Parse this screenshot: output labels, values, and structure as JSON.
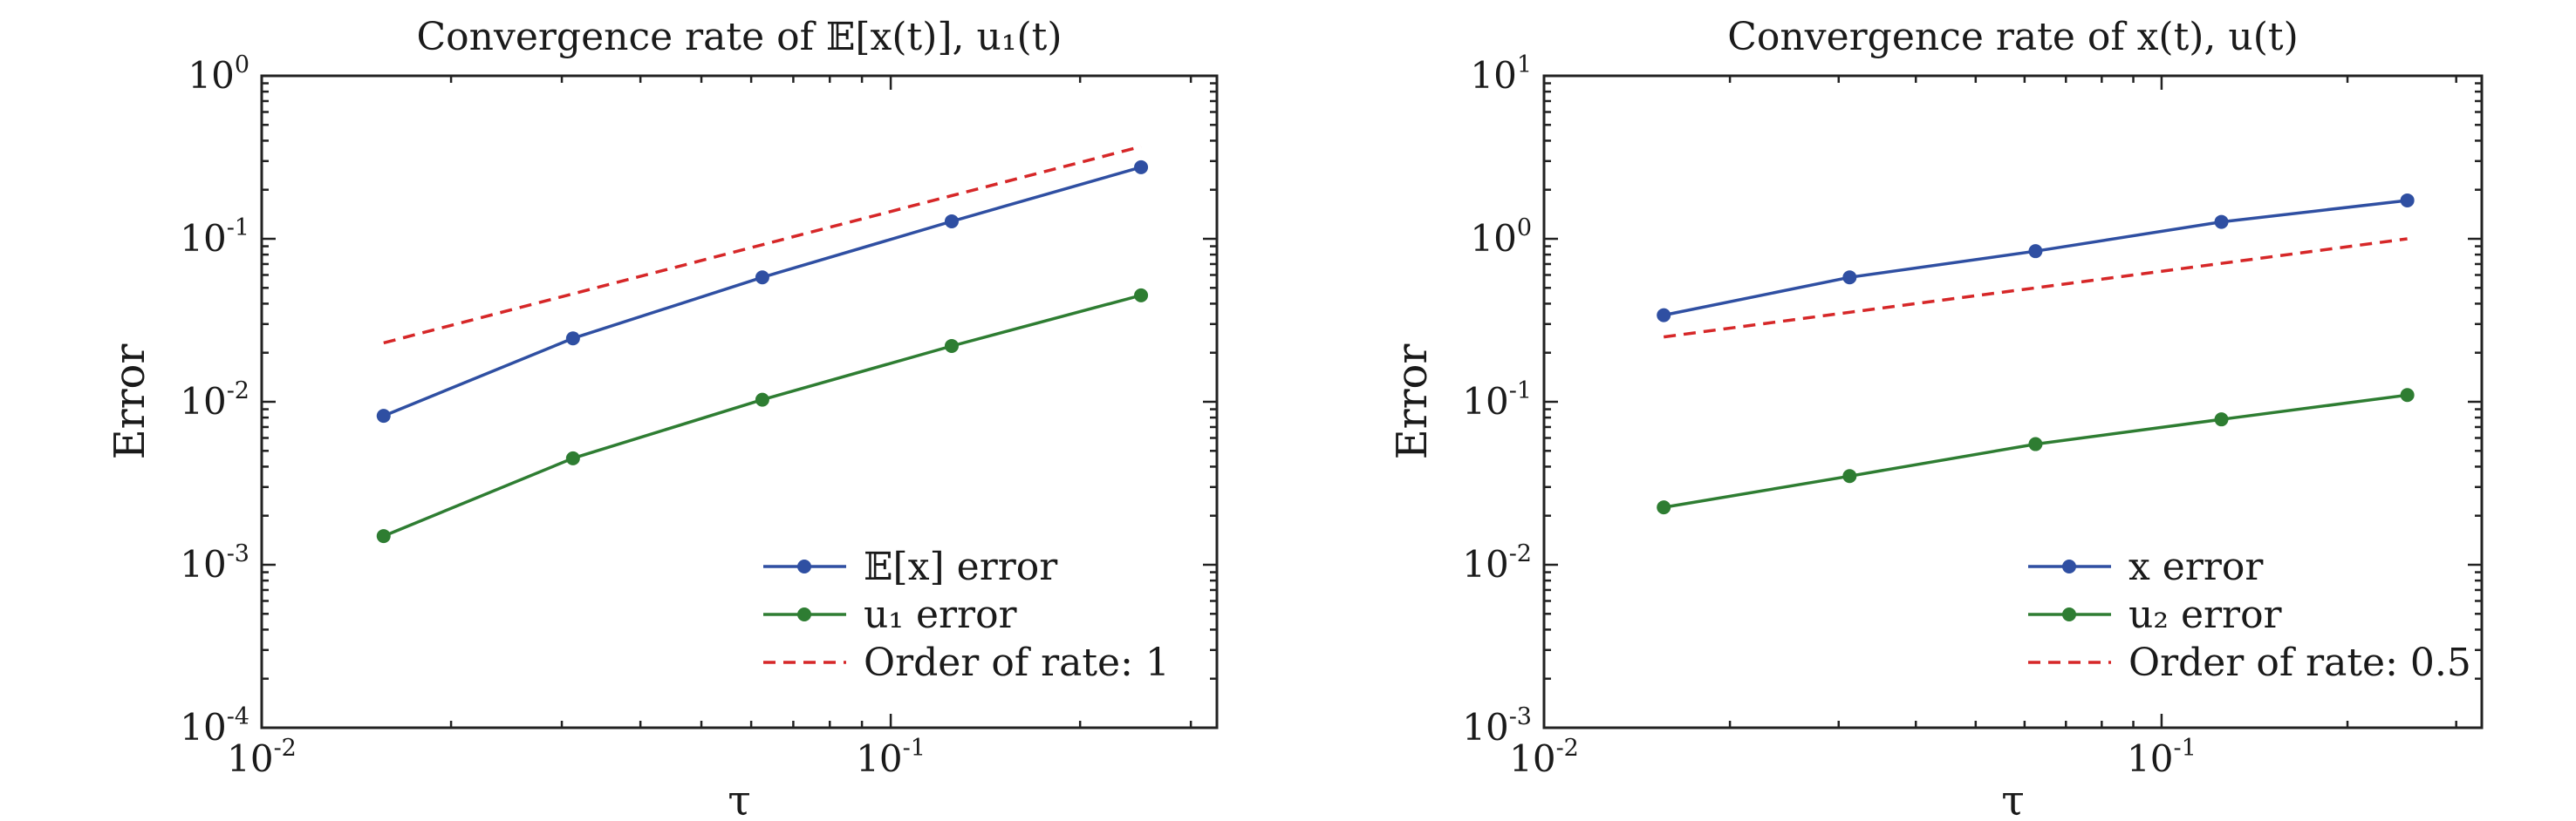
{
  "chart_data": [
    {
      "type": "line",
      "title": "Convergence rate of 𝔼[x(t)], u₁(t)",
      "xlabel": "τ",
      "ylabel": "Error",
      "x_scale": "log",
      "y_scale": "log",
      "xlim": [
        0.01,
        0.33
      ],
      "ylim": [
        0.0001,
        1
      ],
      "x_ticks": [
        {
          "base": "10",
          "exp": "-2"
        },
        {
          "base": "10",
          "exp": "-1"
        }
      ],
      "y_ticks": [
        {
          "base": "10",
          "exp": "-4"
        },
        {
          "base": "10",
          "exp": "-3"
        },
        {
          "base": "10",
          "exp": "-2"
        },
        {
          "base": "10",
          "exp": "-1"
        },
        {
          "base": "10",
          "exp": "0"
        }
      ],
      "legend_position": "lower-right",
      "x": [
        0.015625,
        0.03125,
        0.0625,
        0.125,
        0.25
      ],
      "series": [
        {
          "name": "𝔼[x] error",
          "color": "#2f4fa2",
          "style": "solid",
          "marker": "circle",
          "values": [
            0.0082,
            0.0245,
            0.058,
            0.128,
            0.275
          ]
        },
        {
          "name": "u₁ error",
          "color": "#2e7d32",
          "style": "solid",
          "marker": "circle",
          "values": [
            0.0015,
            0.0045,
            0.0103,
            0.022,
            0.045
          ]
        },
        {
          "name": "Order of rate: 1",
          "color": "#d62728",
          "style": "dashed",
          "marker": "none",
          "values": [
            0.023,
            0.046,
            0.092,
            0.184,
            0.368
          ]
        }
      ]
    },
    {
      "type": "line",
      "title": "Convergence rate of x(t), u(t)",
      "xlabel": "τ",
      "ylabel": "Error",
      "x_scale": "log",
      "y_scale": "log",
      "xlim": [
        0.01,
        0.33
      ],
      "ylim": [
        0.001,
        10
      ],
      "x_ticks": [
        {
          "base": "10",
          "exp": "-2"
        },
        {
          "base": "10",
          "exp": "-1"
        }
      ],
      "y_ticks": [
        {
          "base": "10",
          "exp": "-3"
        },
        {
          "base": "10",
          "exp": "-2"
        },
        {
          "base": "10",
          "exp": "-1"
        },
        {
          "base": "10",
          "exp": "0"
        },
        {
          "base": "10",
          "exp": "1"
        }
      ],
      "legend_position": "lower-right",
      "x": [
        0.015625,
        0.03125,
        0.0625,
        0.125,
        0.25
      ],
      "series": [
        {
          "name": "x error",
          "color": "#2f4fa2",
          "style": "solid",
          "marker": "circle",
          "values": [
            0.34,
            0.58,
            0.84,
            1.27,
            1.72
          ]
        },
        {
          "name": "u₂ error",
          "color": "#2e7d32",
          "style": "solid",
          "marker": "circle",
          "values": [
            0.0225,
            0.035,
            0.055,
            0.078,
            0.11
          ]
        },
        {
          "name": "Order of rate: 0.5",
          "color": "#d62728",
          "style": "dashed",
          "marker": "none",
          "values": [
            0.25,
            0.354,
            0.5,
            0.707,
            1.0
          ]
        }
      ]
    }
  ]
}
